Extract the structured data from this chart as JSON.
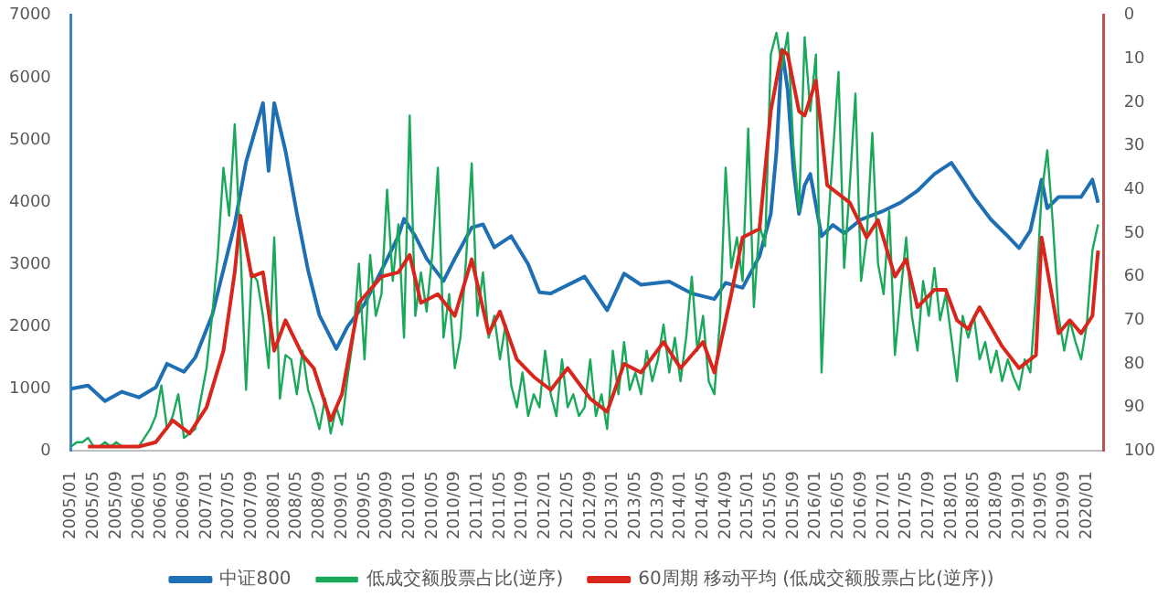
{
  "chart_data": {
    "type": "line",
    "legend": "bottom",
    "grid": false,
    "marker": "none",
    "line_style": "solid",
    "xlim": [
      "2005-01",
      "2020-04"
    ],
    "ylim": [
      0,
      7000
    ],
    "yticks": [
      0,
      1000,
      2000,
      3000,
      4000,
      5000,
      6000,
      7000
    ],
    "y2lim": [
      100,
      0
    ],
    "y2ticks": [
      0,
      10,
      20,
      30,
      40,
      50,
      60,
      70,
      80,
      90,
      100
    ],
    "xticks": [
      {
        "value": "2005-01",
        "label": "2005/01"
      },
      {
        "value": "2005-05",
        "label": "2005/05"
      },
      {
        "value": "2005-09",
        "label": "2005/09"
      },
      {
        "value": "2006-01",
        "label": "2006/01"
      },
      {
        "value": "2006-05",
        "label": "2006/05"
      },
      {
        "value": "2006-09",
        "label": "2006/09"
      },
      {
        "value": "2007-01",
        "label": "2007/01"
      },
      {
        "value": "2007-05",
        "label": "2007/05"
      },
      {
        "value": "2007-09",
        "label": "2007/09"
      },
      {
        "value": "2008-01",
        "label": "2008/01"
      },
      {
        "value": "2008-05",
        "label": "2008/05"
      },
      {
        "value": "2008-09",
        "label": "2008/09"
      },
      {
        "value": "2009-01",
        "label": "2009/01"
      },
      {
        "value": "2009-05",
        "label": "2009/05"
      },
      {
        "value": "2009-09",
        "label": "2009/09"
      },
      {
        "value": "2010-01",
        "label": "2010/01"
      },
      {
        "value": "2010-05",
        "label": "2010/05"
      },
      {
        "value": "2010-09",
        "label": "2010/09"
      },
      {
        "value": "2011-01",
        "label": "2011/01"
      },
      {
        "value": "2011-05",
        "label": "2011/05"
      },
      {
        "value": "2011-09",
        "label": "2011/09"
      },
      {
        "value": "2012-01",
        "label": "2012/01"
      },
      {
        "value": "2012-05",
        "label": "2012/05"
      },
      {
        "value": "2012-09",
        "label": "2012/09"
      },
      {
        "value": "2013-01",
        "label": "2013/01"
      },
      {
        "value": "2013-05",
        "label": "2013/05"
      },
      {
        "value": "2013-09",
        "label": "2013/09"
      },
      {
        "value": "2014-01",
        "label": "2014/01"
      },
      {
        "value": "2014-05",
        "label": "2014/05"
      },
      {
        "value": "2014-09",
        "label": "2014/09"
      },
      {
        "value": "2015-01",
        "label": "2015/01"
      },
      {
        "value": "2015-05",
        "label": "2015/05"
      },
      {
        "value": "2015-09",
        "label": "2015/09"
      },
      {
        "value": "2016-01",
        "label": "2016/01"
      },
      {
        "value": "2016-05",
        "label": "2016/05"
      },
      {
        "value": "2016-09",
        "label": "2016/09"
      },
      {
        "value": "2017-01",
        "label": "2017/01"
      },
      {
        "value": "2017-05",
        "label": "2017/05"
      },
      {
        "value": "2017-09",
        "label": "2017/09"
      },
      {
        "value": "2018-01",
        "label": "2018/01"
      },
      {
        "value": "2018-05",
        "label": "2018/05"
      },
      {
        "value": "2018-09",
        "label": "2018/09"
      },
      {
        "value": "2019-01",
        "label": "2019/01"
      },
      {
        "value": "2019-05",
        "label": "2019/05"
      },
      {
        "value": "2019-09",
        "label": "2019/09"
      },
      {
        "value": "2020-01",
        "label": "2020/01"
      }
    ],
    "x": [
      "2005-01",
      "2005-02",
      "2005-03",
      "2005-04",
      "2005-05",
      "2005-06",
      "2005-07",
      "2005-08",
      "2005-09",
      "2005-10",
      "2005-11",
      "2005-12",
      "2006-01",
      "2006-02",
      "2006-03",
      "2006-04",
      "2006-05",
      "2006-06",
      "2006-07",
      "2006-08",
      "2006-09",
      "2006-10",
      "2006-11",
      "2006-12",
      "2007-01",
      "2007-02",
      "2007-03",
      "2007-04",
      "2007-05",
      "2007-06",
      "2007-07",
      "2007-08",
      "2007-09",
      "2007-10",
      "2007-11",
      "2007-12",
      "2008-01",
      "2008-02",
      "2008-03",
      "2008-04",
      "2008-05",
      "2008-06",
      "2008-07",
      "2008-08",
      "2008-09",
      "2008-10",
      "2008-11",
      "2008-12",
      "2009-01",
      "2009-02",
      "2009-03",
      "2009-04",
      "2009-05",
      "2009-06",
      "2009-07",
      "2009-08",
      "2009-09",
      "2009-10",
      "2009-11",
      "2009-12",
      "2010-01",
      "2010-02",
      "2010-03",
      "2010-04",
      "2010-05",
      "2010-06",
      "2010-07",
      "2010-08",
      "2010-09",
      "2010-10",
      "2010-11",
      "2010-12",
      "2011-01",
      "2011-02",
      "2011-03",
      "2011-04",
      "2011-05",
      "2011-06",
      "2011-07",
      "2011-08",
      "2011-09",
      "2011-10",
      "2011-11",
      "2011-12",
      "2012-01",
      "2012-02",
      "2012-03",
      "2012-04",
      "2012-05",
      "2012-06",
      "2012-07",
      "2012-08",
      "2012-09",
      "2012-10",
      "2012-11",
      "2012-12",
      "2013-01",
      "2013-02",
      "2013-03",
      "2013-04",
      "2013-05",
      "2013-06",
      "2013-07",
      "2013-08",
      "2013-09",
      "2013-10",
      "2013-11",
      "2013-12",
      "2014-01",
      "2014-02",
      "2014-03",
      "2014-04",
      "2014-05",
      "2014-06",
      "2014-07",
      "2014-08",
      "2014-09",
      "2014-10",
      "2014-11",
      "2014-12",
      "2015-01",
      "2015-02",
      "2015-03",
      "2015-04",
      "2015-05",
      "2015-06",
      "2015-07",
      "2015-08",
      "2015-09",
      "2015-10",
      "2015-11",
      "2015-12",
      "2016-01",
      "2016-02",
      "2016-03",
      "2016-04",
      "2016-05",
      "2016-06",
      "2016-07",
      "2016-08",
      "2016-09",
      "2016-10",
      "2016-11",
      "2016-12",
      "2017-01",
      "2017-02",
      "2017-03",
      "2017-04",
      "2017-05",
      "2017-06",
      "2017-07",
      "2017-08",
      "2017-09",
      "2017-10",
      "2017-11",
      "2017-12",
      "2018-01",
      "2018-02",
      "2018-03",
      "2018-04",
      "2018-05",
      "2018-06",
      "2018-07",
      "2018-08",
      "2018-09",
      "2018-10",
      "2018-11",
      "2018-12",
      "2019-01",
      "2019-02",
      "2019-03",
      "2019-04",
      "2019-05",
      "2019-06",
      "2019-07",
      "2019-08",
      "2019-09",
      "2019-10",
      "2019-11",
      "2019-12",
      "2020-01",
      "2020-02",
      "2020-03"
    ],
    "series": [
      {
        "name": "中证800",
        "color": "#1f6fb5",
        "x": [
          "2005-01",
          "2005-04",
          "2005-07",
          "2005-10",
          "2006-01",
          "2006-04",
          "2006-06",
          "2006-09",
          "2006-11",
          "2007-02",
          "2007-03",
          "2007-06",
          "2007-08",
          "2007-11",
          "2007-12",
          "2008-01",
          "2008-03",
          "2008-05",
          "2008-07",
          "2008-09",
          "2008-12",
          "2009-02",
          "2009-05",
          "2009-08",
          "2009-11",
          "2009-12",
          "2010-02",
          "2010-04",
          "2010-07",
          "2010-09",
          "2010-12",
          "2011-02",
          "2011-04",
          "2011-07",
          "2011-10",
          "2011-12",
          "2012-02",
          "2012-08",
          "2012-12",
          "2013-03",
          "2013-06",
          "2013-11",
          "2014-03",
          "2014-07",
          "2014-09",
          "2014-12",
          "2015-03",
          "2015-05",
          "2015-06",
          "2015-07",
          "2015-08",
          "2015-09",
          "2015-10",
          "2015-11",
          "2015-12",
          "2016-02",
          "2016-04",
          "2016-06",
          "2016-09",
          "2017-01",
          "2017-04",
          "2017-07",
          "2017-10",
          "2018-01",
          "2018-03",
          "2018-05",
          "2018-08",
          "2018-11",
          "2019-01",
          "2019-03",
          "2019-05",
          "2019-06",
          "2019-08",
          "2019-12",
          "2020-02",
          "2020-03"
        ],
        "values": [
          1000,
          1050,
          800,
          950,
          860,
          1020,
          1400,
          1270,
          1500,
          2180,
          2550,
          3640,
          4640,
          5590,
          4500,
          5590,
          4820,
          3820,
          2900,
          2180,
          1640,
          2000,
          2360,
          2900,
          3450,
          3730,
          3450,
          3090,
          2730,
          3090,
          3590,
          3640,
          3270,
          3450,
          3000,
          2550,
          2530,
          2800,
          2260,
          2850,
          2670,
          2720,
          2530,
          2440,
          2700,
          2620,
          3130,
          3810,
          4800,
          6450,
          5800,
          4540,
          3810,
          4270,
          4450,
          3450,
          3630,
          3500,
          3720,
          3860,
          3990,
          4180,
          4450,
          4630,
          4360,
          4080,
          3720,
          3450,
          3260,
          3540,
          4360,
          3900,
          4080,
          4080,
          4360,
          3990
        ]
      },
      {
        "name": "低成交额股票占比(逆序)",
        "color": "#1aa85a",
        "axis": "y2",
        "values": [
          99,
          98,
          98,
          97,
          99,
          99,
          98,
          99,
          98,
          99,
          99,
          99,
          99,
          97,
          95,
          92,
          85,
          95,
          92,
          87,
          97,
          96,
          95,
          88,
          81,
          69,
          55,
          35,
          46,
          25,
          53,
          86,
          59,
          61,
          69,
          81,
          51,
          88,
          78,
          79,
          87,
          77,
          86,
          90,
          95,
          88,
          96,
          90,
          94,
          83,
          74,
          57,
          79,
          55,
          69,
          64,
          40,
          61,
          48,
          74,
          23,
          69,
          59,
          68,
          55,
          35,
          74,
          64,
          81,
          74,
          56,
          34,
          69,
          59,
          74,
          69,
          79,
          71,
          85,
          90,
          82,
          92,
          87,
          90,
          77,
          87,
          92,
          79,
          90,
          87,
          92,
          90,
          79,
          92,
          87,
          95,
          77,
          87,
          75,
          86,
          82,
          87,
          77,
          84,
          79,
          71,
          82,
          74,
          84,
          74,
          60,
          77,
          69,
          84,
          87,
          70,
          35,
          58,
          51,
          61,
          26,
          67,
          48,
          53,
          9,
          4,
          12,
          4,
          30,
          45,
          5,
          22,
          9,
          82,
          51,
          32,
          13,
          58,
          39,
          18,
          61,
          51,
          27,
          57,
          64,
          45,
          78,
          64,
          51,
          69,
          77,
          61,
          69,
          58,
          70,
          64,
          74,
          84,
          69,
          74,
          69,
          79,
          75,
          82,
          77,
          84,
          79,
          83,
          86,
          79,
          82,
          64,
          41,
          31,
          48,
          69,
          77,
          70,
          75,
          79,
          71,
          54,
          48
        ]
      },
      {
        "name": "60周期 移动平均 (低成交额股票占比(逆序))",
        "color": "#d9261c",
        "axis": "y2",
        "x": [
          "2005-04",
          "2005-08",
          "2006-01",
          "2006-04",
          "2006-07",
          "2006-10",
          "2007-01",
          "2007-04",
          "2007-06",
          "2007-07",
          "2007-09",
          "2007-11",
          "2008-01",
          "2008-03",
          "2008-06",
          "2008-08",
          "2008-11",
          "2009-01",
          "2009-04",
          "2009-08",
          "2009-11",
          "2010-01",
          "2010-03",
          "2010-06",
          "2010-09",
          "2010-12",
          "2011-03",
          "2011-05",
          "2011-08",
          "2011-11",
          "2012-02",
          "2012-05",
          "2012-09",
          "2012-12",
          "2013-03",
          "2013-06",
          "2013-10",
          "2014-01",
          "2014-05",
          "2014-07",
          "2014-10",
          "2014-12",
          "2015-03",
          "2015-05",
          "2015-07",
          "2015-08",
          "2015-10",
          "2015-11",
          "2016-01",
          "2016-03",
          "2016-07",
          "2016-10",
          "2016-12",
          "2017-03",
          "2017-05",
          "2017-07",
          "2017-10",
          "2017-12",
          "2018-02",
          "2018-04",
          "2018-06",
          "2018-10",
          "2019-01",
          "2019-03",
          "2019-04",
          "2019-05",
          "2019-08",
          "2019-10",
          "2019-12",
          "2020-02",
          "2020-03"
        ],
        "values": [
          99,
          99,
          99,
          98,
          93,
          96,
          90,
          77,
          59,
          46,
          60,
          59,
          77,
          70,
          78,
          81,
          93,
          87,
          66,
          60,
          59,
          55,
          66,
          64,
          69,
          56,
          73,
          68,
          79,
          83,
          86,
          81,
          88,
          91,
          80,
          82,
          75,
          81,
          75,
          82,
          64,
          51,
          49,
          22,
          8,
          9,
          22,
          23,
          15,
          39,
          43,
          51,
          47,
          60,
          56,
          67,
          63,
          63,
          70,
          72,
          67,
          76,
          81,
          79,
          78,
          51,
          73,
          70,
          73,
          69,
          54
        ]
      }
    ]
  }
}
